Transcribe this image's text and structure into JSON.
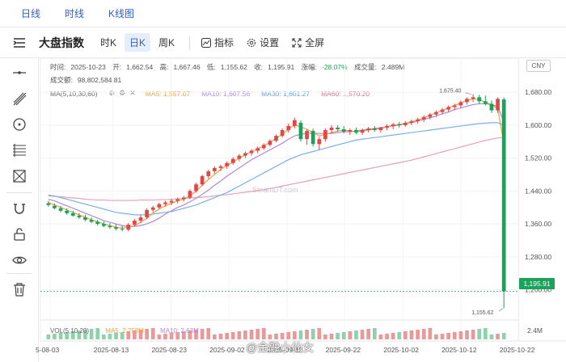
{
  "top_tabs": [
    "日线",
    "时线",
    "K线图"
  ],
  "toolbar": {
    "title": "大盘指数",
    "period_buttons": [
      "时K",
      "日K",
      "周K"
    ],
    "indicator_label": "指标",
    "settings_label": "设置",
    "fullscreen_label": "全屏"
  },
  "info": {
    "time_label": "时间:",
    "time": "2025-10-23",
    "open_label": "开:",
    "open": "1,662.54",
    "high_label": "高:",
    "high": "1,667.46",
    "low_label": "低:",
    "low": "1,155.62",
    "close_label": "收:",
    "close": "1,195.91",
    "change_label": "涨幅:",
    "change": "-28.07%",
    "volume_label": "成交量:",
    "volume": "2.489M",
    "turnover_label": "成交额:",
    "turnover": "98,802,584.81"
  },
  "ma": {
    "label": "MA(5,10,30,60)",
    "ma5": "MA5: 1,557.07",
    "ma10": "MA10: 1,607.56",
    "ma30": "MA30: 1,601.27",
    "ma60": "MA60: 1,570.20"
  },
  "currency": "CNY",
  "last_price_tag": "1,195.91",
  "annotations": {
    "high": "1,675.40",
    "low": "1,155.62"
  },
  "watermark_center": "SteamDT.com",
  "watermark_bottom": "@金融小仙女",
  "volume_pane": {
    "label": "VOL(5,10,20)",
    "ma5": "MA5: 2.758M",
    "ma10": "MA10: 2.63M",
    "axis_label": "2.4M"
  },
  "colors": {
    "up": "#e04848",
    "down": "#1aa35a",
    "ma5": "#e8a33d",
    "ma10": "#b088d8",
    "ma30": "#7ab0e8",
    "ma60": "#e8a0b8",
    "accent": "#2b5fce"
  },
  "chart_data": {
    "type": "candlestick",
    "y_ticks": [
      "1,680.00",
      "1,600.00",
      "1,520.00",
      "1,440.00",
      "1,360.00",
      "1,280.00",
      "1,200.00"
    ],
    "x_ticks": [
      "5-08-03",
      "2025-08-13",
      "2025-08-23",
      "2025-09-02",
      "2025-09-12",
      "2025-09-22",
      "2025-10-02",
      "2025-10-12",
      "2025-10-22"
    ],
    "ylim": [
      1150,
      1700
    ],
    "candles": [
      {
        "o": 1410,
        "h": 1416,
        "l": 1402,
        "c": 1406
      },
      {
        "o": 1404,
        "h": 1410,
        "l": 1396,
        "c": 1398
      },
      {
        "o": 1398,
        "h": 1404,
        "l": 1388,
        "c": 1392
      },
      {
        "o": 1392,
        "h": 1398,
        "l": 1382,
        "c": 1386
      },
      {
        "o": 1386,
        "h": 1392,
        "l": 1378,
        "c": 1380
      },
      {
        "o": 1380,
        "h": 1386,
        "l": 1372,
        "c": 1376
      },
      {
        "o": 1376,
        "h": 1382,
        "l": 1366,
        "c": 1370
      },
      {
        "o": 1370,
        "h": 1376,
        "l": 1362,
        "c": 1365
      },
      {
        "o": 1365,
        "h": 1370,
        "l": 1356,
        "c": 1360
      },
      {
        "o": 1360,
        "h": 1366,
        "l": 1352,
        "c": 1355
      },
      {
        "o": 1355,
        "h": 1362,
        "l": 1348,
        "c": 1352
      },
      {
        "o": 1352,
        "h": 1360,
        "l": 1344,
        "c": 1348
      },
      {
        "o": 1348,
        "h": 1356,
        "l": 1342,
        "c": 1346
      },
      {
        "o": 1346,
        "h": 1362,
        "l": 1342,
        "c": 1358
      },
      {
        "o": 1358,
        "h": 1372,
        "l": 1354,
        "c": 1368
      },
      {
        "o": 1368,
        "h": 1382,
        "l": 1362,
        "c": 1376
      },
      {
        "o": 1376,
        "h": 1398,
        "l": 1372,
        "c": 1394
      },
      {
        "o": 1394,
        "h": 1404,
        "l": 1388,
        "c": 1400
      },
      {
        "o": 1400,
        "h": 1412,
        "l": 1396,
        "c": 1408
      },
      {
        "o": 1408,
        "h": 1416,
        "l": 1402,
        "c": 1412
      },
      {
        "o": 1412,
        "h": 1420,
        "l": 1406,
        "c": 1416
      },
      {
        "o": 1416,
        "h": 1424,
        "l": 1410,
        "c": 1420
      },
      {
        "o": 1420,
        "h": 1428,
        "l": 1414,
        "c": 1424
      },
      {
        "o": 1424,
        "h": 1444,
        "l": 1420,
        "c": 1440
      },
      {
        "o": 1440,
        "h": 1460,
        "l": 1436,
        "c": 1456
      },
      {
        "o": 1456,
        "h": 1480,
        "l": 1452,
        "c": 1476
      },
      {
        "o": 1476,
        "h": 1492,
        "l": 1470,
        "c": 1488
      },
      {
        "o": 1488,
        "h": 1500,
        "l": 1482,
        "c": 1496
      },
      {
        "o": 1496,
        "h": 1504,
        "l": 1488,
        "c": 1500
      },
      {
        "o": 1500,
        "h": 1512,
        "l": 1494,
        "c": 1508
      },
      {
        "o": 1508,
        "h": 1522,
        "l": 1504,
        "c": 1518
      },
      {
        "o": 1518,
        "h": 1530,
        "l": 1512,
        "c": 1526
      },
      {
        "o": 1526,
        "h": 1536,
        "l": 1520,
        "c": 1532
      },
      {
        "o": 1532,
        "h": 1542,
        "l": 1526,
        "c": 1538
      },
      {
        "o": 1538,
        "h": 1548,
        "l": 1532,
        "c": 1544
      },
      {
        "o": 1544,
        "h": 1556,
        "l": 1540,
        "c": 1552
      },
      {
        "o": 1552,
        "h": 1566,
        "l": 1548,
        "c": 1562
      },
      {
        "o": 1562,
        "h": 1578,
        "l": 1558,
        "c": 1574
      },
      {
        "o": 1574,
        "h": 1592,
        "l": 1570,
        "c": 1588
      },
      {
        "o": 1588,
        "h": 1604,
        "l": 1582,
        "c": 1598
      },
      {
        "o": 1598,
        "h": 1618,
        "l": 1592,
        "c": 1612
      },
      {
        "o": 1606,
        "h": 1612,
        "l": 1560,
        "c": 1566
      },
      {
        "o": 1566,
        "h": 1590,
        "l": 1552,
        "c": 1586
      },
      {
        "o": 1586,
        "h": 1592,
        "l": 1548,
        "c": 1554
      },
      {
        "o": 1554,
        "h": 1572,
        "l": 1540,
        "c": 1566
      },
      {
        "o": 1566,
        "h": 1592,
        "l": 1560,
        "c": 1588
      },
      {
        "o": 1588,
        "h": 1600,
        "l": 1580,
        "c": 1594
      },
      {
        "o": 1594,
        "h": 1600,
        "l": 1584,
        "c": 1590
      },
      {
        "o": 1590,
        "h": 1598,
        "l": 1580,
        "c": 1584
      },
      {
        "o": 1584,
        "h": 1592,
        "l": 1576,
        "c": 1588
      },
      {
        "o": 1588,
        "h": 1594,
        "l": 1578,
        "c": 1582
      },
      {
        "o": 1582,
        "h": 1592,
        "l": 1576,
        "c": 1588
      },
      {
        "o": 1588,
        "h": 1596,
        "l": 1582,
        "c": 1592
      },
      {
        "o": 1592,
        "h": 1598,
        "l": 1584,
        "c": 1588
      },
      {
        "o": 1588,
        "h": 1596,
        "l": 1582,
        "c": 1594
      },
      {
        "o": 1594,
        "h": 1602,
        "l": 1588,
        "c": 1598
      },
      {
        "o": 1598,
        "h": 1606,
        "l": 1590,
        "c": 1602
      },
      {
        "o": 1602,
        "h": 1608,
        "l": 1594,
        "c": 1600
      },
      {
        "o": 1600,
        "h": 1610,
        "l": 1596,
        "c": 1606
      },
      {
        "o": 1606,
        "h": 1614,
        "l": 1600,
        "c": 1610
      },
      {
        "o": 1610,
        "h": 1618,
        "l": 1604,
        "c": 1614
      },
      {
        "o": 1614,
        "h": 1624,
        "l": 1608,
        "c": 1620
      },
      {
        "o": 1620,
        "h": 1630,
        "l": 1614,
        "c": 1626
      },
      {
        "o": 1626,
        "h": 1636,
        "l": 1620,
        "c": 1632
      },
      {
        "o": 1632,
        "h": 1642,
        "l": 1626,
        "c": 1638
      },
      {
        "o": 1638,
        "h": 1648,
        "l": 1632,
        "c": 1644
      },
      {
        "o": 1644,
        "h": 1652,
        "l": 1636,
        "c": 1648
      },
      {
        "o": 1648,
        "h": 1660,
        "l": 1642,
        "c": 1656
      },
      {
        "o": 1656,
        "h": 1668,
        "l": 1650,
        "c": 1664
      },
      {
        "o": 1664,
        "h": 1675,
        "l": 1656,
        "c": 1668
      },
      {
        "o": 1668,
        "h": 1674,
        "l": 1652,
        "c": 1658
      },
      {
        "o": 1658,
        "h": 1672,
        "l": 1648,
        "c": 1652
      },
      {
        "o": 1652,
        "h": 1660,
        "l": 1630,
        "c": 1636
      },
      {
        "o": 1636,
        "h": 1668,
        "l": 1630,
        "c": 1664
      },
      {
        "o": 1662.54,
        "h": 1667.46,
        "l": 1155.62,
        "c": 1195.91
      }
    ],
    "ma5": [
      1412,
      1406,
      1400,
      1394,
      1388,
      1382,
      1376,
      1370,
      1365,
      1360,
      1356,
      1352,
      1350,
      1352,
      1356,
      1364,
      1374,
      1386,
      1396,
      1404,
      1410,
      1416,
      1420,
      1428,
      1440,
      1454,
      1468,
      1480,
      1492,
      1502,
      1510,
      1520,
      1528,
      1536,
      1542,
      1550,
      1558,
      1568,
      1578,
      1590,
      1600,
      1596,
      1590,
      1582,
      1574,
      1578,
      1582,
      1586,
      1588,
      1586,
      1584,
      1586,
      1588,
      1590,
      1592,
      1596,
      1600,
      1602,
      1604,
      1608,
      1612,
      1618,
      1624,
      1630,
      1636,
      1642,
      1648,
      1654,
      1660,
      1664,
      1662,
      1656,
      1650,
      1640,
      1557
    ],
    "ma10": [
      1420,
      1416,
      1410,
      1404,
      1398,
      1392,
      1386,
      1380,
      1374,
      1368,
      1364,
      1360,
      1356,
      1354,
      1354,
      1356,
      1360,
      1366,
      1374,
      1384,
      1392,
      1400,
      1406,
      1414,
      1422,
      1432,
      1442,
      1454,
      1464,
      1476,
      1486,
      1496,
      1506,
      1516,
      1524,
      1532,
      1540,
      1548,
      1556,
      1566,
      1574,
      1578,
      1580,
      1580,
      1580,
      1580,
      1580,
      1582,
      1584,
      1584,
      1586,
      1588,
      1590,
      1592,
      1594,
      1596,
      1598,
      1600,
      1604,
      1606,
      1610,
      1614,
      1618,
      1622,
      1628,
      1632,
      1638,
      1642,
      1646,
      1650,
      1652,
      1652,
      1650,
      1646,
      1607
    ],
    "ma30": [
      1430,
      1428,
      1424,
      1420,
      1416,
      1412,
      1408,
      1404,
      1400,
      1396,
      1392,
      1388,
      1386,
      1384,
      1382,
      1382,
      1382,
      1384,
      1386,
      1388,
      1390,
      1394,
      1398,
      1402,
      1406,
      1412,
      1418,
      1424,
      1430,
      1436,
      1444,
      1452,
      1460,
      1468,
      1476,
      1484,
      1492,
      1500,
      1508,
      1516,
      1522,
      1528,
      1532,
      1536,
      1540,
      1544,
      1548,
      1552,
      1556,
      1560,
      1564,
      1566,
      1568,
      1570,
      1572,
      1574,
      1576,
      1578,
      1580,
      1582,
      1584,
      1586,
      1588,
      1590,
      1592,
      1594,
      1596,
      1598,
      1600,
      1602,
      1604,
      1605,
      1606,
      1606,
      1601
    ],
    "ma60": [
      1428,
      1427,
      1426,
      1424,
      1423,
      1422,
      1420,
      1419,
      1418,
      1418,
      1417,
      1417,
      1417,
      1417,
      1417,
      1418,
      1418,
      1418,
      1419,
      1419,
      1420,
      1421,
      1422,
      1423,
      1424,
      1425,
      1426,
      1428,
      1430,
      1431,
      1433,
      1435,
      1437,
      1439,
      1441,
      1443,
      1446,
      1449,
      1452,
      1455,
      1458,
      1461,
      1464,
      1467,
      1470,
      1473,
      1476,
      1479,
      1482,
      1485,
      1488,
      1491,
      1494,
      1497,
      1500,
      1503,
      1506,
      1509,
      1512,
      1515,
      1519,
      1523,
      1527,
      1531,
      1535,
      1539,
      1543,
      1547,
      1551,
      1555,
      1559,
      1563,
      1566,
      1569,
      1570.2
    ]
  }
}
